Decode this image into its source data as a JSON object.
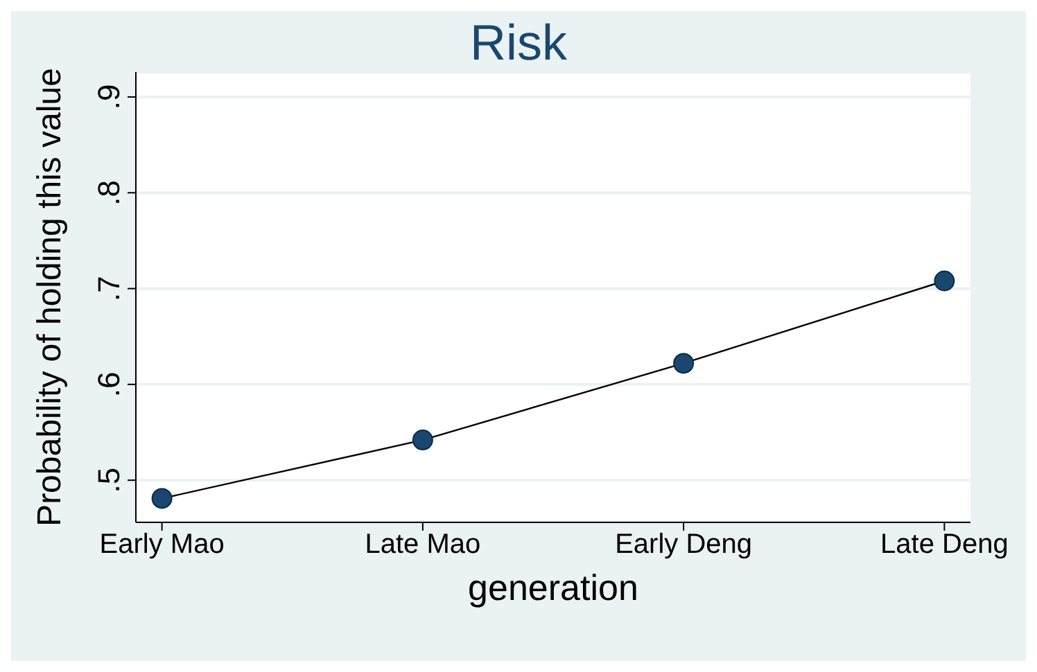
{
  "chart_data": {
    "type": "line",
    "title": "Risk",
    "xlabel": "generation",
    "ylabel": "Probability of holding this value",
    "categories": [
      "Early Mao",
      "Late Mao",
      "Early Deng",
      "Late Deng"
    ],
    "series": [
      {
        "color": "#1a476f",
        "values": [
          0.481,
          0.542,
          0.622,
          0.708
        ]
      }
    ],
    "ylim": [
      0.456,
      0.926
    ],
    "yticks": [
      {
        "value": 0.5,
        "label": ".5"
      },
      {
        "value": 0.6,
        "label": ".6"
      },
      {
        "value": 0.7,
        "label": ".7"
      },
      {
        "value": 0.8,
        "label": ".8"
      },
      {
        "value": 0.9,
        "label": ".9"
      }
    ],
    "grid": "y",
    "legend": false,
    "marker": "circle",
    "line_style": "solid"
  }
}
